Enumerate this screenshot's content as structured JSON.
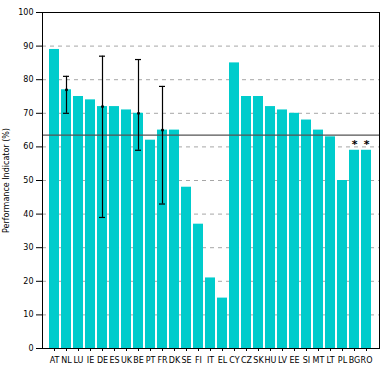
{
  "chart_data": {
    "type": "bar",
    "categories": [
      "AT",
      "NL",
      "LU",
      "IE",
      "DE",
      "ES",
      "UK",
      "BE",
      "PT",
      "FR",
      "DK",
      "SE",
      "FI",
      "IT",
      "EL",
      "CY",
      "CZ",
      "SK",
      "HU",
      "LV",
      "EE",
      "SI",
      "MT",
      "LT",
      "PL",
      "BG",
      "RO"
    ],
    "values": [
      89,
      77,
      75,
      74,
      72,
      72,
      71,
      70,
      62,
      65,
      65,
      48,
      37,
      21,
      15,
      85,
      75,
      75,
      72,
      71,
      70,
      68,
      65,
      63,
      50,
      59,
      59
    ],
    "error_lower": [
      null,
      70,
      null,
      null,
      39,
      null,
      null,
      59,
      null,
      43,
      null,
      null,
      null,
      null,
      null,
      null,
      null,
      null,
      null,
      null,
      null,
      null,
      null,
      null,
      null,
      null,
      null
    ],
    "error_upper": [
      null,
      81,
      null,
      null,
      87,
      null,
      null,
      86,
      null,
      78,
      null,
      null,
      null,
      null,
      null,
      null,
      null,
      null,
      null,
      null,
      null,
      null,
      null,
      null,
      null,
      null,
      null
    ],
    "color": "#00CCCC",
    "ylabel": "Performance Indicator (%)",
    "ylim": [
      0,
      100
    ],
    "yticks": [
      0,
      10,
      20,
      30,
      40,
      50,
      60,
      70,
      80,
      90,
      100
    ],
    "grid": true,
    "reference_line": {
      "value": 63.5,
      "color": "#555555"
    },
    "annotations": [
      {
        "text": "*",
        "category": "BG"
      },
      {
        "text": "*",
        "category": "RO"
      }
    ]
  }
}
